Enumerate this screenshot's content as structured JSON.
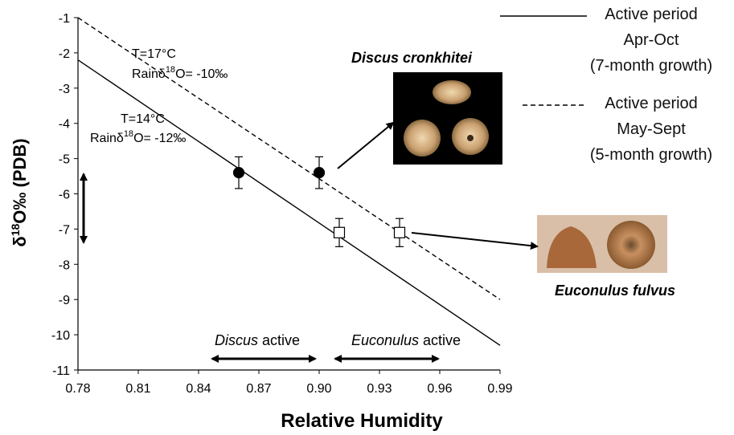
{
  "chart_data": {
    "type": "line",
    "x_label": "Relative Humidity",
    "y_label": {
      "before": "δ",
      "sup": "18",
      "after": "O‰ (PDB)"
    },
    "xlim": [
      0.78,
      0.99
    ],
    "xticks": [
      0.78,
      0.81,
      0.84,
      0.87,
      {
        "value": 0.9,
        "label": "0.90"
      },
      0.93,
      0.96,
      0.99
    ],
    "ylim": [
      -1,
      -11
    ],
    "yticks": [
      -1,
      -2,
      -3,
      -4,
      -5,
      -6,
      -7,
      -8,
      -9,
      -10,
      -11
    ],
    "series": [
      {
        "name": "Active period\nApr-Oct\n(7-month growth)",
        "color": "#000000",
        "dash": false,
        "x": [
          0.78,
          0.99
        ],
        "values": [
          -2.2,
          -10.3
        ]
      },
      {
        "name": "Active period\nMay-Sept\n(5-month growth)",
        "color": "#000000",
        "dash": true,
        "x": [
          0.78,
          0.99
        ],
        "values": [
          -1,
          -9
        ]
      }
    ],
    "points": [
      {
        "marker": "circle",
        "fill": "#000000",
        "x": [
          0.86,
          0.9
        ],
        "values": [
          -5.4,
          -5.4
        ],
        "errors": [
          0.45,
          0.45
        ]
      },
      {
        "marker": "square",
        "fill": "#ffffff",
        "x": [
          0.91,
          0.94
        ],
        "values": [
          -7.1,
          -7.1
        ],
        "errors": [
          0.4,
          0.4
        ]
      }
    ],
    "annotations": [
      {
        "title": "T=17°C",
        "before": "Rainδ",
        "sup": "18",
        "after": "O= -10‰"
      },
      {
        "title": "T=14°C",
        "before": "Rainδ",
        "sup": "18",
        "after": "O= -12‰"
      }
    ],
    "species": [
      "Discus cronkhitei",
      "Euconulus fulvus"
    ],
    "activity": [
      {
        "italic": "Discus",
        "text": "active"
      },
      {
        "italic": "Euconulus",
        "text": "active"
      }
    ]
  }
}
